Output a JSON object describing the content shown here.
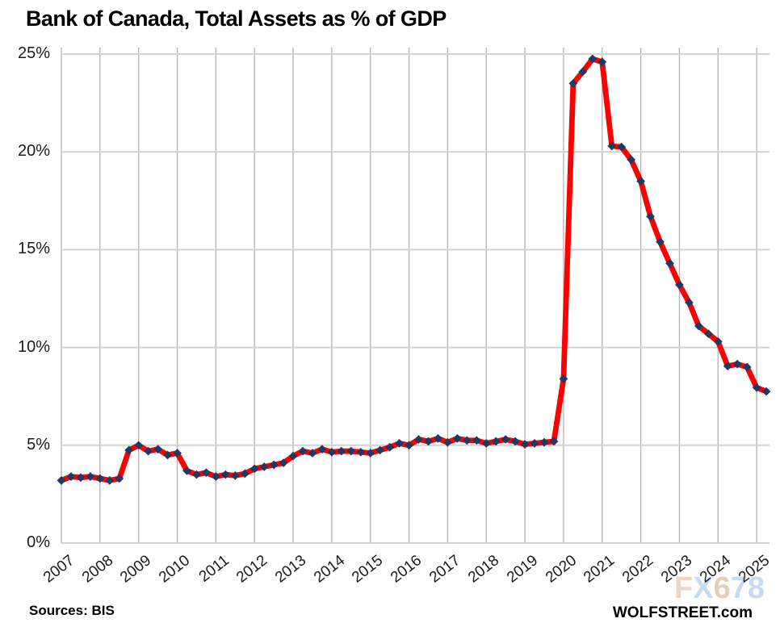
{
  "title": "Bank of Canada, Total Assets as % of GDP",
  "source_note": "Sources: BIS",
  "brand": "WOLFSTREET.com",
  "watermark": {
    "text": "FX678",
    "letters": [
      {
        "char": "F",
        "color": "#e8d8c5"
      },
      {
        "char": "X",
        "color": "#c7daf0"
      },
      {
        "char": "6",
        "color": "#e2cfb8"
      },
      {
        "char": "7",
        "color": "#c7daf0"
      },
      {
        "char": "8",
        "color": "#c7daf0"
      }
    ]
  },
  "colors": {
    "line": "#ff0000",
    "marker": "#1f3864",
    "grid_horizontal": "#d2d2d2",
    "grid_vertical": "#b3b3b3",
    "axis_text": "#1a1a1a"
  },
  "chart_data": {
    "type": "line",
    "title": "Bank of Canada, Total Assets as % of GDP",
    "xlabel": "",
    "ylabel": "Total assets as % of GDP",
    "frequency": "quarterly",
    "start_period": "2007-Q1",
    "end_period": "2025-Q2",
    "ylim": [
      0,
      25
    ],
    "y_tick_labels": [
      "0%",
      "5%",
      "10%",
      "15%",
      "20%",
      "25%"
    ],
    "y_gridlines": [
      0,
      5,
      10,
      15,
      20,
      25
    ],
    "x_tick_labels": [
      "2007",
      "2008",
      "2009",
      "2010",
      "2011",
      "2012",
      "2013",
      "2014",
      "2015",
      "2016",
      "2017",
      "2018",
      "2019",
      "2020",
      "2021",
      "2022",
      "2023",
      "2024",
      "2025"
    ],
    "grid": true,
    "legend": "none",
    "series": [
      {
        "name": "Bank of Canada total assets as % of GDP",
        "marker": "diamond",
        "values": [
          3.2,
          3.4,
          3.35,
          3.4,
          3.3,
          3.2,
          3.3,
          4.75,
          5.0,
          4.7,
          4.8,
          4.5,
          4.6,
          3.7,
          3.5,
          3.6,
          3.4,
          3.5,
          3.45,
          3.55,
          3.8,
          3.9,
          4.0,
          4.1,
          4.45,
          4.7,
          4.6,
          4.8,
          4.65,
          4.7,
          4.7,
          4.65,
          4.6,
          4.75,
          4.9,
          5.1,
          5.0,
          5.3,
          5.2,
          5.35,
          5.15,
          5.35,
          5.25,
          5.25,
          5.1,
          5.2,
          5.3,
          5.2,
          5.05,
          5.1,
          5.15,
          5.2,
          8.4,
          23.5,
          24.1,
          24.75,
          24.6,
          20.3,
          20.25,
          19.6,
          18.5,
          16.7,
          15.4,
          14.3,
          13.2,
          12.3,
          11.1,
          10.7,
          10.3,
          9.05,
          9.15,
          9.0,
          7.95,
          7.75
        ]
      }
    ]
  }
}
